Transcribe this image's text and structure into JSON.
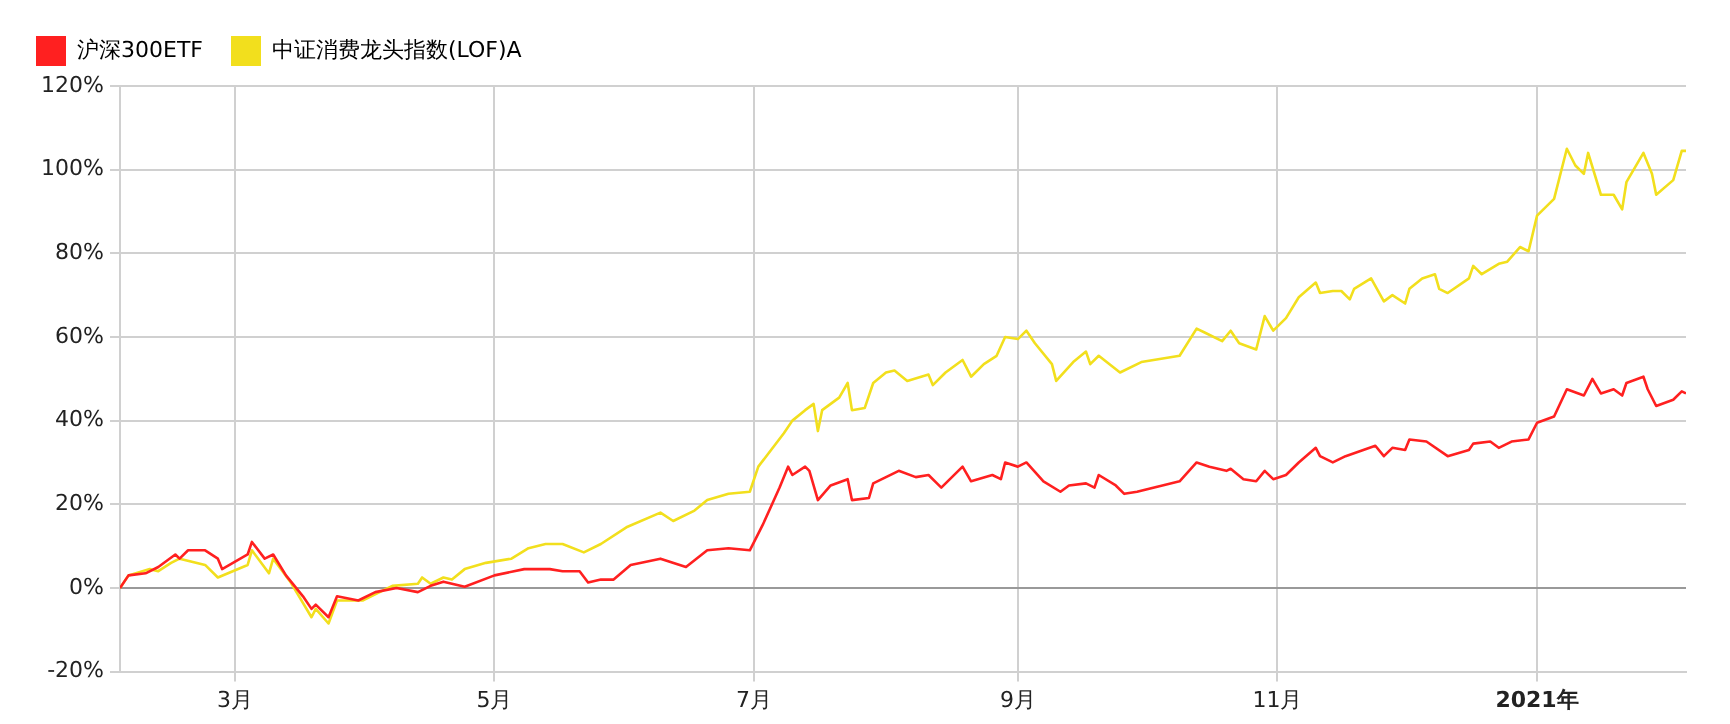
{
  "chart_data": {
    "type": "line",
    "legend": "top left",
    "grid": true,
    "marker": "none",
    "line_style": "solid",
    "xlim": [
      "2020-02-03",
      "2021-02-05"
    ],
    "xticks": [
      {
        "value": "2020-03-01",
        "label": "3月"
      },
      {
        "value": "2020-05-01",
        "label": "5月"
      },
      {
        "value": "2020-07-01",
        "label": "7月"
      },
      {
        "value": "2020-09-01",
        "label": "9月"
      },
      {
        "value": "2020-11-01",
        "label": "11月"
      },
      {
        "value": "2021-01-01",
        "label": "2021年"
      }
    ],
    "ylim": [
      -20,
      120
    ],
    "yticks": [
      {
        "value": -20,
        "label": "-20%"
      },
      {
        "value": 0,
        "label": "0%"
      },
      {
        "value": 20,
        "label": "20%"
      },
      {
        "value": 40,
        "label": "40%"
      },
      {
        "value": 60,
        "label": "60%"
      },
      {
        "value": 80,
        "label": "80%"
      },
      {
        "value": 100,
        "label": "100%"
      },
      {
        "value": 120,
        "label": "120%"
      }
    ],
    "ref_lines": [
      {
        "axis": "y",
        "value": 0,
        "color": "#999999"
      }
    ],
    "series": [
      {
        "name": "沪深300ETF",
        "color": "#ff2020",
        "x": [
          "2020-02-03",
          "2020-02-05",
          "2020-02-09",
          "2020-02-12",
          "2020-02-16",
          "2020-02-17",
          "2020-02-19",
          "2020-02-23",
          "2020-02-26",
          "2020-02-27",
          "2020-03-04",
          "2020-03-05",
          "2020-03-08",
          "2020-03-10",
          "2020-03-13",
          "2020-03-17",
          "2020-03-19",
          "2020-03-20",
          "2020-03-23",
          "2020-03-25",
          "2020-03-30",
          "2020-04-03",
          "2020-04-08",
          "2020-04-13",
          "2020-04-16",
          "2020-04-19",
          "2020-04-24",
          "2020-05-01",
          "2020-05-08",
          "2020-05-14",
          "2020-05-17",
          "2020-05-21",
          "2020-05-23",
          "2020-05-26",
          "2020-05-29",
          "2020-06-02",
          "2020-06-09",
          "2020-06-15",
          "2020-06-20",
          "2020-06-25",
          "2020-06-30",
          "2020-07-03",
          "2020-07-07",
          "2020-07-09",
          "2020-07-10",
          "2020-07-13",
          "2020-07-14",
          "2020-07-16",
          "2020-07-19",
          "2020-07-23",
          "2020-07-24",
          "2020-07-28",
          "2020-07-29",
          "2020-08-04",
          "2020-08-08",
          "2020-08-11",
          "2020-08-14",
          "2020-08-19",
          "2020-08-21",
          "2020-08-26",
          "2020-08-28",
          "2020-08-29",
          "2020-09-01",
          "2020-09-03",
          "2020-09-07",
          "2020-09-11",
          "2020-09-13",
          "2020-09-17",
          "2020-09-19",
          "2020-09-20",
          "2020-09-24",
          "2020-09-26",
          "2020-09-29",
          "2020-10-09",
          "2020-10-13",
          "2020-10-16",
          "2020-10-20",
          "2020-10-21",
          "2020-10-24",
          "2020-10-27",
          "2020-10-29",
          "2020-10-31",
          "2020-11-03",
          "2020-11-06",
          "2020-11-10",
          "2020-11-11",
          "2020-11-14",
          "2020-11-17",
          "2020-11-24",
          "2020-11-26",
          "2020-11-28",
          "2020-12-01",
          "2020-12-02",
          "2020-12-06",
          "2020-12-11",
          "2020-12-16",
          "2020-12-17",
          "2020-12-21",
          "2020-12-23",
          "2020-12-26",
          "2020-12-30",
          "2021-01-01",
          "2021-01-05",
          "2021-01-08",
          "2021-01-12",
          "2021-01-14",
          "2021-01-16",
          "2021-01-19",
          "2021-01-21",
          "2021-01-22",
          "2021-01-26",
          "2021-01-27",
          "2021-01-29",
          "2021-02-02",
          "2021-02-04",
          "2021-02-05"
        ],
        "values": [
          0,
          3,
          3.5,
          5,
          8,
          7,
          9,
          9,
          7,
          4.5,
          8,
          11,
          7,
          8,
          3,
          -2,
          -5,
          -4,
          -7,
          -2,
          -3,
          -1,
          0,
          -1,
          0.5,
          1.5,
          0.3,
          3,
          4.5,
          4.5,
          4,
          4,
          1.3,
          2,
          2,
          5.5,
          7,
          5,
          9,
          9.5,
          9,
          15,
          24,
          29,
          27,
          29,
          28,
          21,
          24.5,
          26,
          21,
          21.5,
          25,
          28,
          26.5,
          27,
          24,
          29,
          25.5,
          27,
          26,
          30,
          29,
          30,
          25.5,
          23,
          24.5,
          25,
          24,
          27,
          24.5,
          22.5,
          23,
          25.5,
          30,
          29,
          28,
          28.5,
          26,
          25.5,
          28,
          26,
          27,
          30,
          33.5,
          31.5,
          30,
          31.5,
          34,
          31.5,
          33.5,
          33,
          35.5,
          35,
          31.5,
          33,
          34.5,
          35,
          33.5,
          35,
          35.5,
          39.5,
          41,
          47.5,
          46,
          50,
          46.5,
          47.5,
          46,
          49,
          50.5,
          47.5,
          43.5,
          45,
          47,
          46.5
        ]
      },
      {
        "name": "中证消费龙头指数(LOF)A",
        "color": "#f2df1d",
        "x": [
          "2020-02-03",
          "2020-02-05",
          "2020-02-10",
          "2020-02-12",
          "2020-02-15",
          "2020-02-17",
          "2020-02-23",
          "2020-02-26",
          "2020-03-04",
          "2020-03-05",
          "2020-03-09",
          "2020-03-10",
          "2020-03-14",
          "2020-03-19",
          "2020-03-20",
          "2020-03-23",
          "2020-03-25",
          "2020-03-31",
          "2020-04-07",
          "2020-04-13",
          "2020-04-14",
          "2020-04-16",
          "2020-04-19",
          "2020-04-21",
          "2020-04-24",
          "2020-04-29",
          "2020-05-05",
          "2020-05-09",
          "2020-05-13",
          "2020-05-17",
          "2020-05-22",
          "2020-05-26",
          "2020-06-01",
          "2020-06-09",
          "2020-06-12",
          "2020-06-17",
          "2020-06-20",
          "2020-06-25",
          "2020-06-30",
          "2020-07-02",
          "2020-07-08",
          "2020-07-10",
          "2020-07-13",
          "2020-07-15",
          "2020-07-16",
          "2020-07-17",
          "2020-07-21",
          "2020-07-23",
          "2020-07-24",
          "2020-07-27",
          "2020-07-29",
          "2020-08-01",
          "2020-08-03",
          "2020-08-06",
          "2020-08-11",
          "2020-08-12",
          "2020-08-15",
          "2020-08-19",
          "2020-08-21",
          "2020-08-24",
          "2020-08-27",
          "2020-08-29",
          "2020-09-01",
          "2020-09-03",
          "2020-09-05",
          "2020-09-09",
          "2020-09-10",
          "2020-09-14",
          "2020-09-17",
          "2020-09-18",
          "2020-09-20",
          "2020-09-25",
          "2020-09-30",
          "2020-10-09",
          "2020-10-13",
          "2020-10-15",
          "2020-10-19",
          "2020-10-21",
          "2020-10-23",
          "2020-10-27",
          "2020-10-29",
          "2020-10-31",
          "2020-11-03",
          "2020-11-06",
          "2020-11-10",
          "2020-11-11",
          "2020-11-14",
          "2020-11-16",
          "2020-11-18",
          "2020-11-19",
          "2020-11-23",
          "2020-11-26",
          "2020-11-28",
          "2020-12-01",
          "2020-12-02",
          "2020-12-05",
          "2020-12-08",
          "2020-12-09",
          "2020-12-11",
          "2020-12-16",
          "2020-12-17",
          "2020-12-19",
          "2020-12-23",
          "2020-12-25",
          "2020-12-28",
          "2020-12-30",
          "2021-01-01",
          "2021-01-05",
          "2021-01-08",
          "2021-01-10",
          "2021-01-12",
          "2021-01-13",
          "2021-01-16",
          "2021-01-19",
          "2021-01-21",
          "2021-01-22",
          "2021-01-26",
          "2021-01-28",
          "2021-01-29",
          "2021-02-02",
          "2021-02-04",
          "2021-02-05"
        ],
        "values": [
          0,
          3,
          4.5,
          4,
          6,
          7,
          5.5,
          2.5,
          5.5,
          9,
          3.5,
          7,
          1.5,
          -7,
          -5,
          -8.5,
          -3,
          -3,
          0.5,
          1,
          2.5,
          1,
          2.5,
          2,
          4.5,
          6,
          7,
          9.5,
          10.5,
          10.5,
          8.5,
          10.5,
          14.5,
          18,
          16,
          18.5,
          21,
          22.5,
          23,
          29,
          37,
          40,
          42.5,
          44,
          37.5,
          42.5,
          45.5,
          49,
          42.5,
          43,
          49,
          51.5,
          52,
          49.5,
          51,
          48.5,
          51.5,
          54.5,
          50.5,
          53.5,
          55.5,
          60,
          59.5,
          61.5,
          58.5,
          53.5,
          49.5,
          54,
          56.5,
          53.5,
          55.5,
          51.5,
          54,
          55.5,
          62,
          61,
          59,
          61.5,
          58.5,
          57,
          65,
          61.5,
          64.5,
          69.5,
          73,
          70.5,
          71,
          71,
          69,
          71.5,
          74,
          68.5,
          70,
          68,
          71.5,
          74,
          75,
          71.5,
          70.5,
          74,
          77,
          75,
          77.5,
          78,
          81.5,
          80.5,
          89,
          93,
          105,
          101,
          99,
          104,
          94,
          94,
          90.5,
          97,
          104,
          99,
          94,
          97.5,
          104.5,
          104.5
        ]
      }
    ]
  }
}
